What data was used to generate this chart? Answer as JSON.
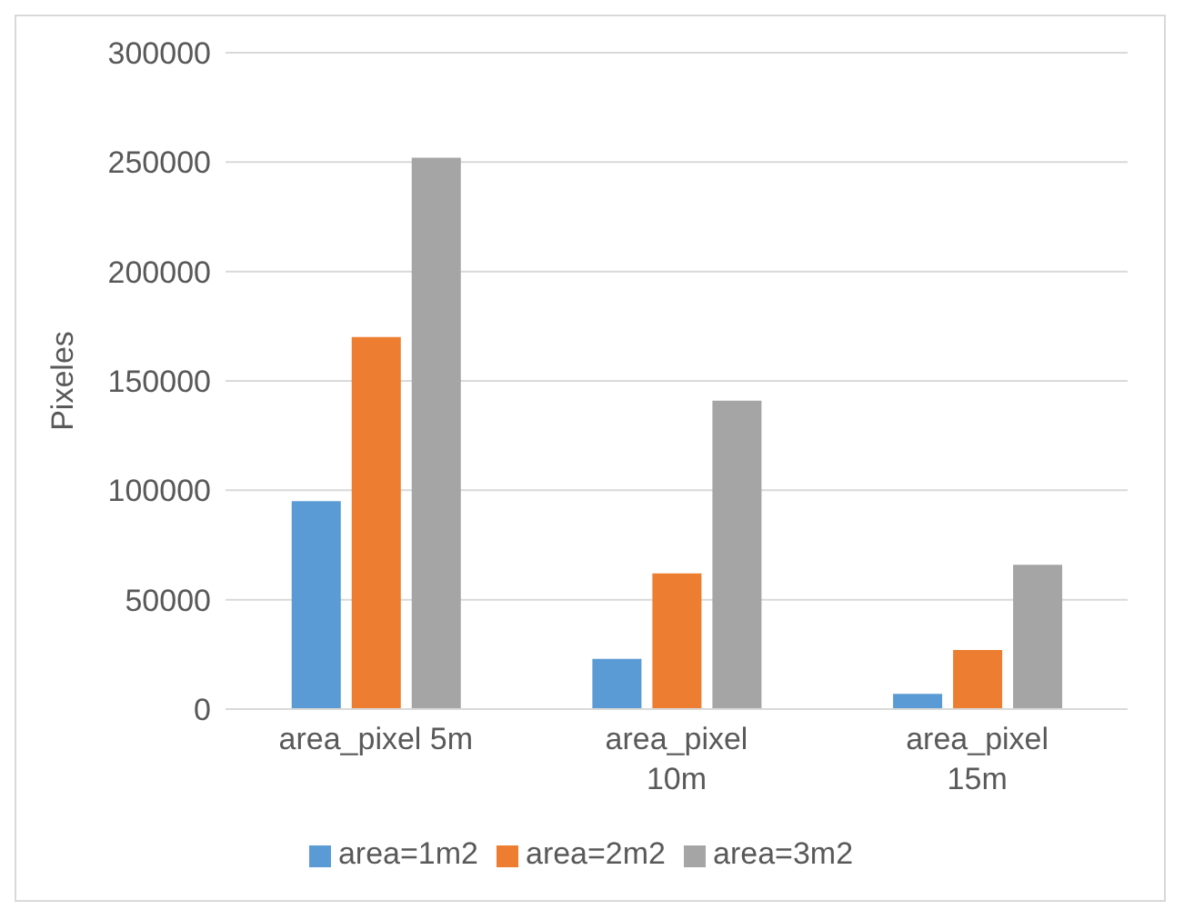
{
  "chart_data": {
    "type": "bar",
    "ylabel": "Pixeles",
    "categories": [
      "area_pixel 5m",
      "area_pixel 10m",
      "area_pixel 15m"
    ],
    "series": [
      {
        "name": "area=1m2",
        "color": "#5b9bd5",
        "values": [
          95000,
          23000,
          7000
        ]
      },
      {
        "name": "area=2m2",
        "color": "#ed7d31",
        "values": [
          170000,
          62000,
          27000
        ]
      },
      {
        "name": "area=3m2",
        "color": "#a5a5a5",
        "values": [
          252000,
          141000,
          66000
        ]
      }
    ],
    "ylim": [
      0,
      300000
    ],
    "yticks": [
      0,
      50000,
      100000,
      150000,
      200000,
      250000,
      300000
    ],
    "grid": "y",
    "legend": "bottom"
  }
}
